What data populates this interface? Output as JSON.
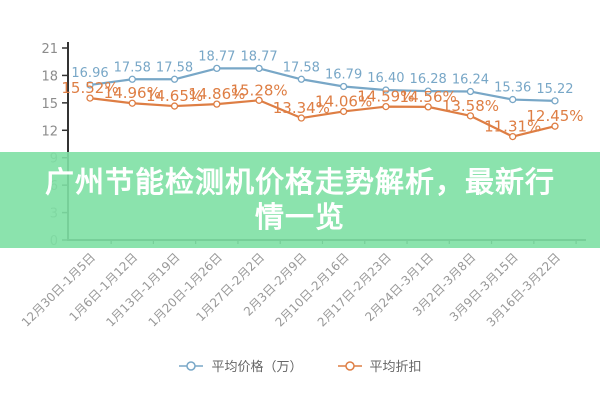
{
  "banner": {
    "title": "广州节能检测机价格走势解析，最新行情一览",
    "title_lines": [
      "广州节能检测机价格走势解析，最新行",
      "情一览"
    ],
    "bg_color": "rgba(126,224,164,0.9)",
    "text_color": "#ffffff"
  },
  "chart_data": {
    "type": "line",
    "categories": [
      "12月30日-1月5日",
      "1月6日-1月12日",
      "1月13日-1月19日",
      "1月20日-1月26日",
      "1月27日-2月2日",
      "2月3日-2月9日",
      "2月10日-2月16日",
      "2月17日-2月23日",
      "2月24日-3月1日",
      "3月2日-3月8日",
      "3月9日-3月15日",
      "3月16日-3月22日"
    ],
    "series": [
      {
        "name": "平均价格（万）",
        "color": "#78a7c7",
        "values": [
          16.96,
          17.58,
          17.58,
          18.77,
          18.77,
          17.58,
          16.79,
          16.4,
          16.28,
          16.24,
          15.36,
          15.22
        ],
        "label_suffix": ""
      },
      {
        "name": "平均折扣",
        "color": "#de7e44",
        "values": [
          15.52,
          14.96,
          14.65,
          14.86,
          15.28,
          13.34,
          14.06,
          14.59,
          14.56,
          13.58,
          11.31,
          12.45
        ],
        "label_suffix": "%"
      }
    ],
    "title": "",
    "xlabel": "",
    "ylabel": "",
    "ylim": [
      0,
      21
    ],
    "yticks": [
      0,
      3,
      6,
      9,
      12,
      15,
      18,
      21
    ],
    "grid": false,
    "legend_position": "bottom",
    "marker": "open-circle",
    "axis_color": "#333333",
    "ytick_label_color": "#8c8c8c",
    "xtick_label_color": "#999999",
    "legend_text_color": "#666666"
  }
}
